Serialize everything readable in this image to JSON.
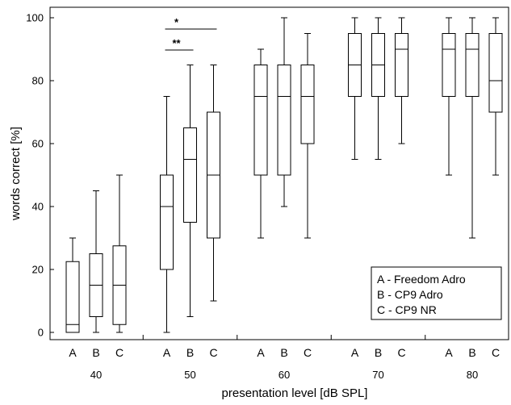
{
  "chart_data": {
    "type": "boxplot",
    "xlabel": "presentation level [dB SPL]",
    "ylabel": "words correct [%]",
    "ylim": [
      0,
      100
    ],
    "yticks": [
      0,
      20,
      40,
      60,
      80,
      100
    ],
    "groups": [
      "40",
      "50",
      "60",
      "70",
      "80"
    ],
    "conditions": [
      "A",
      "B",
      "C"
    ],
    "legend": {
      "placement": "bottom-right",
      "entries": [
        "A - Freedom Adro",
        "B - CP9 Adro",
        "C - CP9 NR"
      ]
    },
    "boxes": [
      {
        "group": "40",
        "condition": "A",
        "min": 0,
        "q1": 0,
        "median": 2.5,
        "q3": 22.5,
        "max": 30
      },
      {
        "group": "40",
        "condition": "B",
        "min": 0,
        "q1": 5,
        "median": 15,
        "q3": 25,
        "max": 45
      },
      {
        "group": "40",
        "condition": "C",
        "min": 0,
        "q1": 2.5,
        "median": 15,
        "q3": 27.5,
        "max": 50
      },
      {
        "group": "50",
        "condition": "A",
        "min": 0,
        "q1": 20,
        "median": 40,
        "q3": 50,
        "max": 75
      },
      {
        "group": "50",
        "condition": "B",
        "min": 5,
        "q1": 35,
        "median": 55,
        "q3": 65,
        "max": 85
      },
      {
        "group": "50",
        "condition": "C",
        "min": 10,
        "q1": 30,
        "median": 50,
        "q3": 70,
        "max": 85
      },
      {
        "group": "60",
        "condition": "A",
        "min": 30,
        "q1": 50,
        "median": 75,
        "q3": 85,
        "max": 90
      },
      {
        "group": "60",
        "condition": "B",
        "min": 40,
        "q1": 50,
        "median": 75,
        "q3": 85,
        "max": 100
      },
      {
        "group": "60",
        "condition": "C",
        "min": 30,
        "q1": 60,
        "median": 75,
        "q3": 85,
        "max": 95
      },
      {
        "group": "70",
        "condition": "A",
        "min": 55,
        "q1": 75,
        "median": 85,
        "q3": 95,
        "max": 100
      },
      {
        "group": "70",
        "condition": "B",
        "min": 55,
        "q1": 75,
        "median": 85,
        "q3": 95,
        "max": 100
      },
      {
        "group": "70",
        "condition": "C",
        "min": 60,
        "q1": 75,
        "median": 90,
        "q3": 95,
        "max": 100
      },
      {
        "group": "80",
        "condition": "A",
        "min": 50,
        "q1": 75,
        "median": 90,
        "q3": 95,
        "max": 100
      },
      {
        "group": "80",
        "condition": "B",
        "min": 30,
        "q1": 75,
        "median": 90,
        "q3": 95,
        "max": 100
      },
      {
        "group": "80",
        "condition": "C",
        "min": 50,
        "q1": 70,
        "median": 80,
        "q3": 95,
        "max": 100
      }
    ],
    "significance": [
      {
        "group": "50",
        "from": "A",
        "to": "C",
        "label": "*"
      },
      {
        "group": "50",
        "from": "A",
        "to": "B",
        "label": "**"
      }
    ]
  }
}
